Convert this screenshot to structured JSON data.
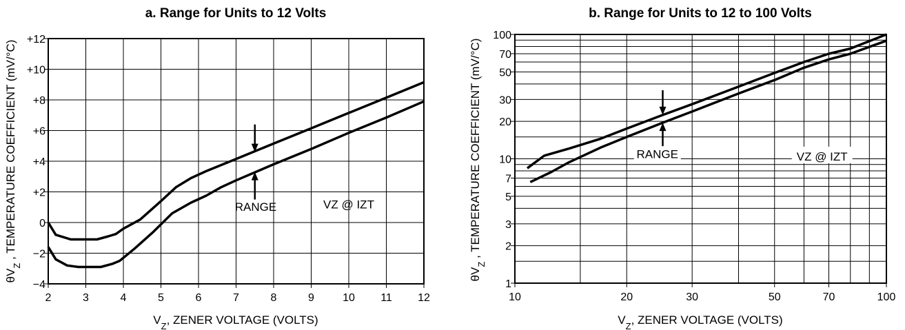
{
  "chart_data": [
    {
      "type": "line",
      "title": "a. Range for Units to 12 Volts",
      "xlabel": "VZ, ZENER VOLTAGE (VOLTS)",
      "ylabel": "θVZ , TEMPERATURE COEFFICIENT (mV/°C)",
      "xlim": [
        2,
        12
      ],
      "ylim": [
        -4,
        12
      ],
      "x_ticks": [
        2,
        3,
        4,
        5,
        6,
        7,
        8,
        9,
        10,
        11,
        12
      ],
      "y_ticks": [
        -4,
        -2,
        0,
        2,
        4,
        6,
        8,
        10,
        12
      ],
      "y_tick_labels": [
        "−4",
        "−2",
        "0",
        "+2",
        "+4",
        "+6",
        "+8",
        "+10",
        "+12"
      ],
      "grid": true,
      "series": [
        {
          "x": [
            2,
            2.2,
            2.6,
            3.0,
            3.3,
            3.6,
            3.8,
            4.0,
            4.45,
            5.0,
            5.4,
            5.8,
            6.2,
            7,
            8,
            9,
            10,
            11,
            12
          ],
          "y": [
            0,
            -0.8,
            -1.1,
            -1.1,
            -1.1,
            -0.9,
            -0.75,
            -0.4,
            0.2,
            1.4,
            2.3,
            2.9,
            3.35,
            4.15,
            5.15,
            6.15,
            7.15,
            8.15,
            9.15
          ]
        },
        {
          "x": [
            2,
            2.2,
            2.5,
            2.8,
            3.1,
            3.4,
            3.7,
            3.9,
            4.3,
            4.8,
            5.3,
            5.8,
            6.2,
            6.6,
            7,
            8,
            9,
            10,
            11,
            12
          ],
          "y": [
            -1.6,
            -2.4,
            -2.8,
            -2.9,
            -2.9,
            -2.9,
            -2.7,
            -2.5,
            -1.7,
            -0.6,
            0.6,
            1.3,
            1.75,
            2.3,
            2.75,
            3.8,
            4.8,
            5.85,
            6.85,
            7.9
          ]
        }
      ],
      "annotations": {
        "range_label": "RANGE",
        "condition_label": "VZ @ IZT",
        "arrow_x": 7.5,
        "arrow_top_y": 4.6,
        "arrow_bottom_y": 3.3,
        "range_text_x": 8.0,
        "range_text_y": 1.0,
        "condition_text_x": 10.0,
        "condition_text_y": 1.1
      }
    },
    {
      "type": "line",
      "title": "b. Range for Units to 12 to 100 Volts",
      "xlabel": "VZ, ZENER VOLTAGE (VOLTS)",
      "ylabel": "θVZ , TEMPERATURE COEFFICIENT (mV/°C)",
      "x_scale": "log",
      "y_scale": "log",
      "xlim": [
        10,
        100
      ],
      "ylim": [
        1,
        100
      ],
      "x_ticks": [
        10,
        20,
        30,
        50,
        70,
        100
      ],
      "y_ticks": [
        1,
        2,
        3,
        5,
        7,
        10,
        20,
        30,
        50,
        70,
        100
      ],
      "x_grid": [
        10,
        15,
        20,
        30,
        40,
        50,
        60,
        70,
        80,
        90,
        100
      ],
      "y_grid": [
        1,
        1.5,
        2,
        3,
        4,
        5,
        6,
        7,
        8,
        9,
        10,
        15,
        20,
        30,
        40,
        50,
        60,
        70,
        80,
        90,
        100
      ],
      "grid": true,
      "series": [
        {
          "x": [
            10.8,
            12,
            14,
            17,
            20,
            25,
            30,
            40,
            50,
            60,
            70,
            80,
            100
          ],
          "y": [
            8.4,
            10.6,
            12.1,
            14.5,
            17.5,
            22.5,
            27.5,
            38,
            49,
            60,
            70,
            77,
            100
          ]
        },
        {
          "x": [
            11,
            12.5,
            14,
            17,
            20,
            25,
            30,
            40,
            50,
            60,
            70,
            80,
            100
          ],
          "y": [
            6.5,
            7.8,
            9.4,
            12.3,
            15,
            19.5,
            24,
            33.5,
            43,
            54,
            63,
            70,
            89
          ]
        }
      ],
      "annotations": {
        "range_label": "RANGE",
        "condition_label": "VZ @ IZT",
        "arrow_x": 25,
        "arrow_top_y": 22.5,
        "arrow_bottom_y": 19.5,
        "range_text_x": 24.5,
        "range_text_y": 10.5,
        "condition_text_x": 68,
        "condition_text_y": 10.2
      }
    }
  ]
}
